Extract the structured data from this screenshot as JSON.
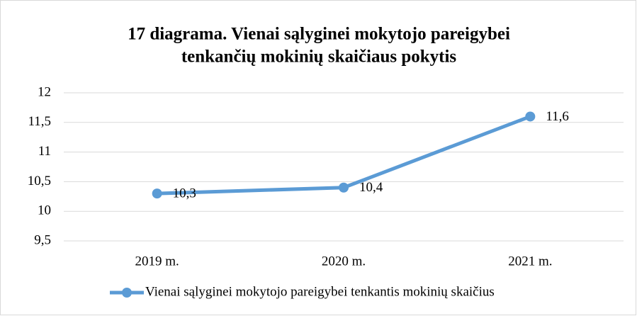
{
  "chart_data": {
    "type": "line",
    "title": [
      "17 diagrama. Vienai sąlyginei mokytojo pareigybei",
      "tenkančių mokinių skaičiaus pokytis"
    ],
    "categories": [
      "2019 m.",
      "2020 m.",
      "2021 m."
    ],
    "series": [
      {
        "name": "Vienai sąlyginei mokytojo pareigybei tenkantis mokinių skaičius",
        "color": "#5b9bd5",
        "values": [
          10.3,
          10.4,
          11.6
        ],
        "value_labels": [
          "10,3",
          "10,4",
          "11,6"
        ]
      }
    ],
    "ylim": [
      9.5,
      12
    ],
    "yticks": [
      {
        "value": 9.5,
        "label": "9,5"
      },
      10,
      {
        "value": 10.5,
        "label": "10,5"
      },
      11,
      {
        "value": 11.5,
        "label": "11,5"
      },
      12
    ],
    "grid": true,
    "legend": "bottom"
  }
}
